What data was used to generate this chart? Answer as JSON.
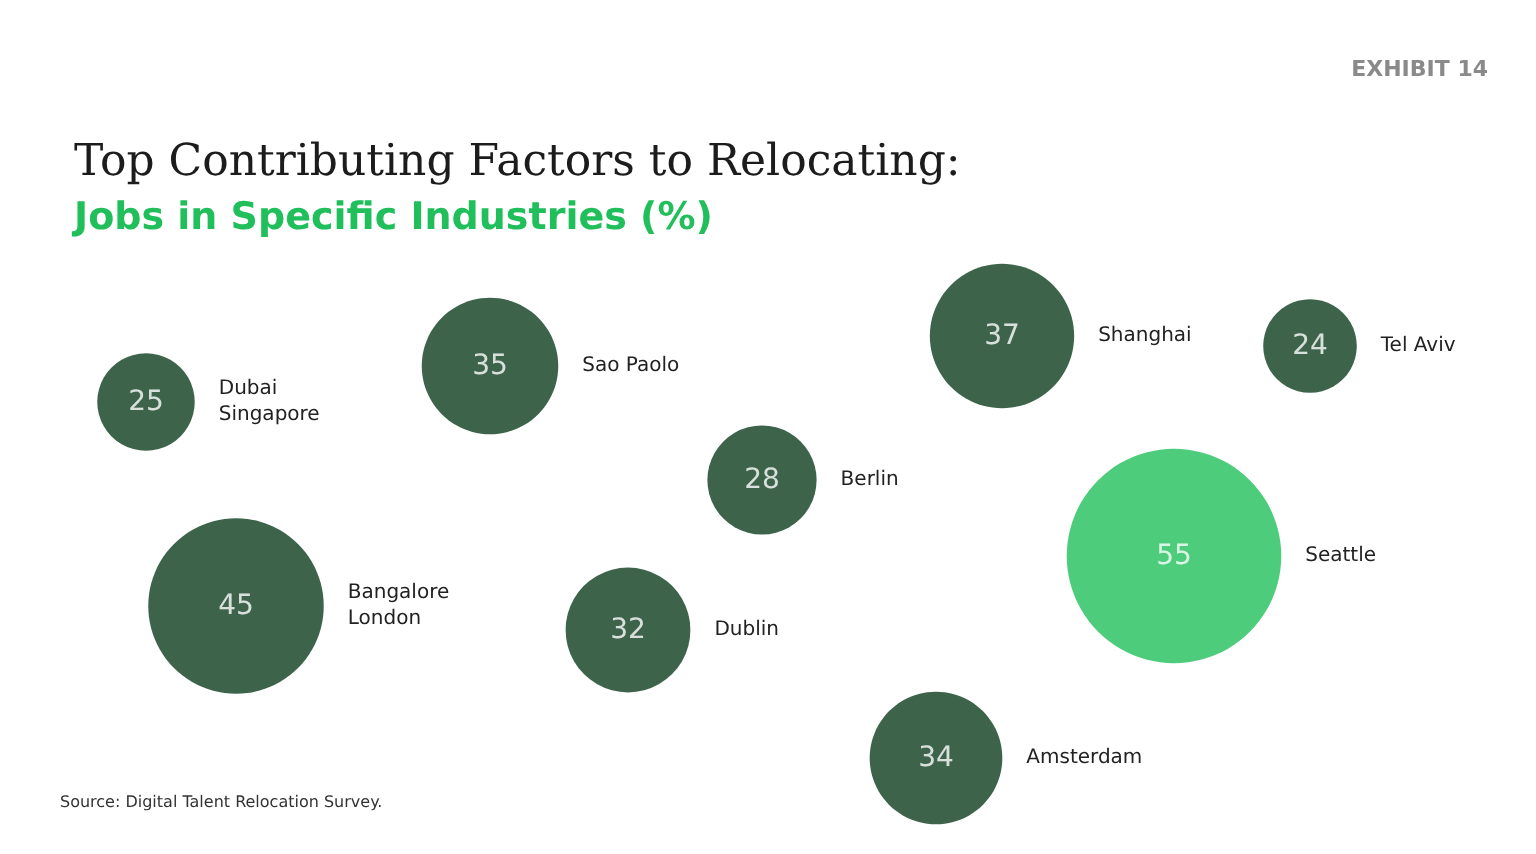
{
  "chart_data": {
    "type": "other",
    "title": "Top Contributing Factors to Relocating:",
    "subtitle": "Jobs in Specific Industries (%)",
    "annotations": [
      "EXHIBIT 14",
      "Source: Digital Talent Relocation Survey."
    ],
    "categories": [
      "Dubai\nSingapore",
      "Sao Paolo",
      "Bangalore\nLondon",
      "Dublin",
      "Berlin",
      "Shanghai",
      "Tel Aviv",
      "Seattle",
      "Amsterdam"
    ],
    "values": [
      25,
      35,
      45,
      32,
      28,
      37,
      24,
      55,
      34
    ],
    "colors": [
      "#0d3d1e",
      "#0d3d1e",
      "#0d3d1e",
      "#0d3d1e",
      "#0d3d1e",
      "#0d3d1e",
      "#0d3d1e",
      "#21bf5b",
      "#0d3d1e"
    ],
    "data_labels": true
  }
}
